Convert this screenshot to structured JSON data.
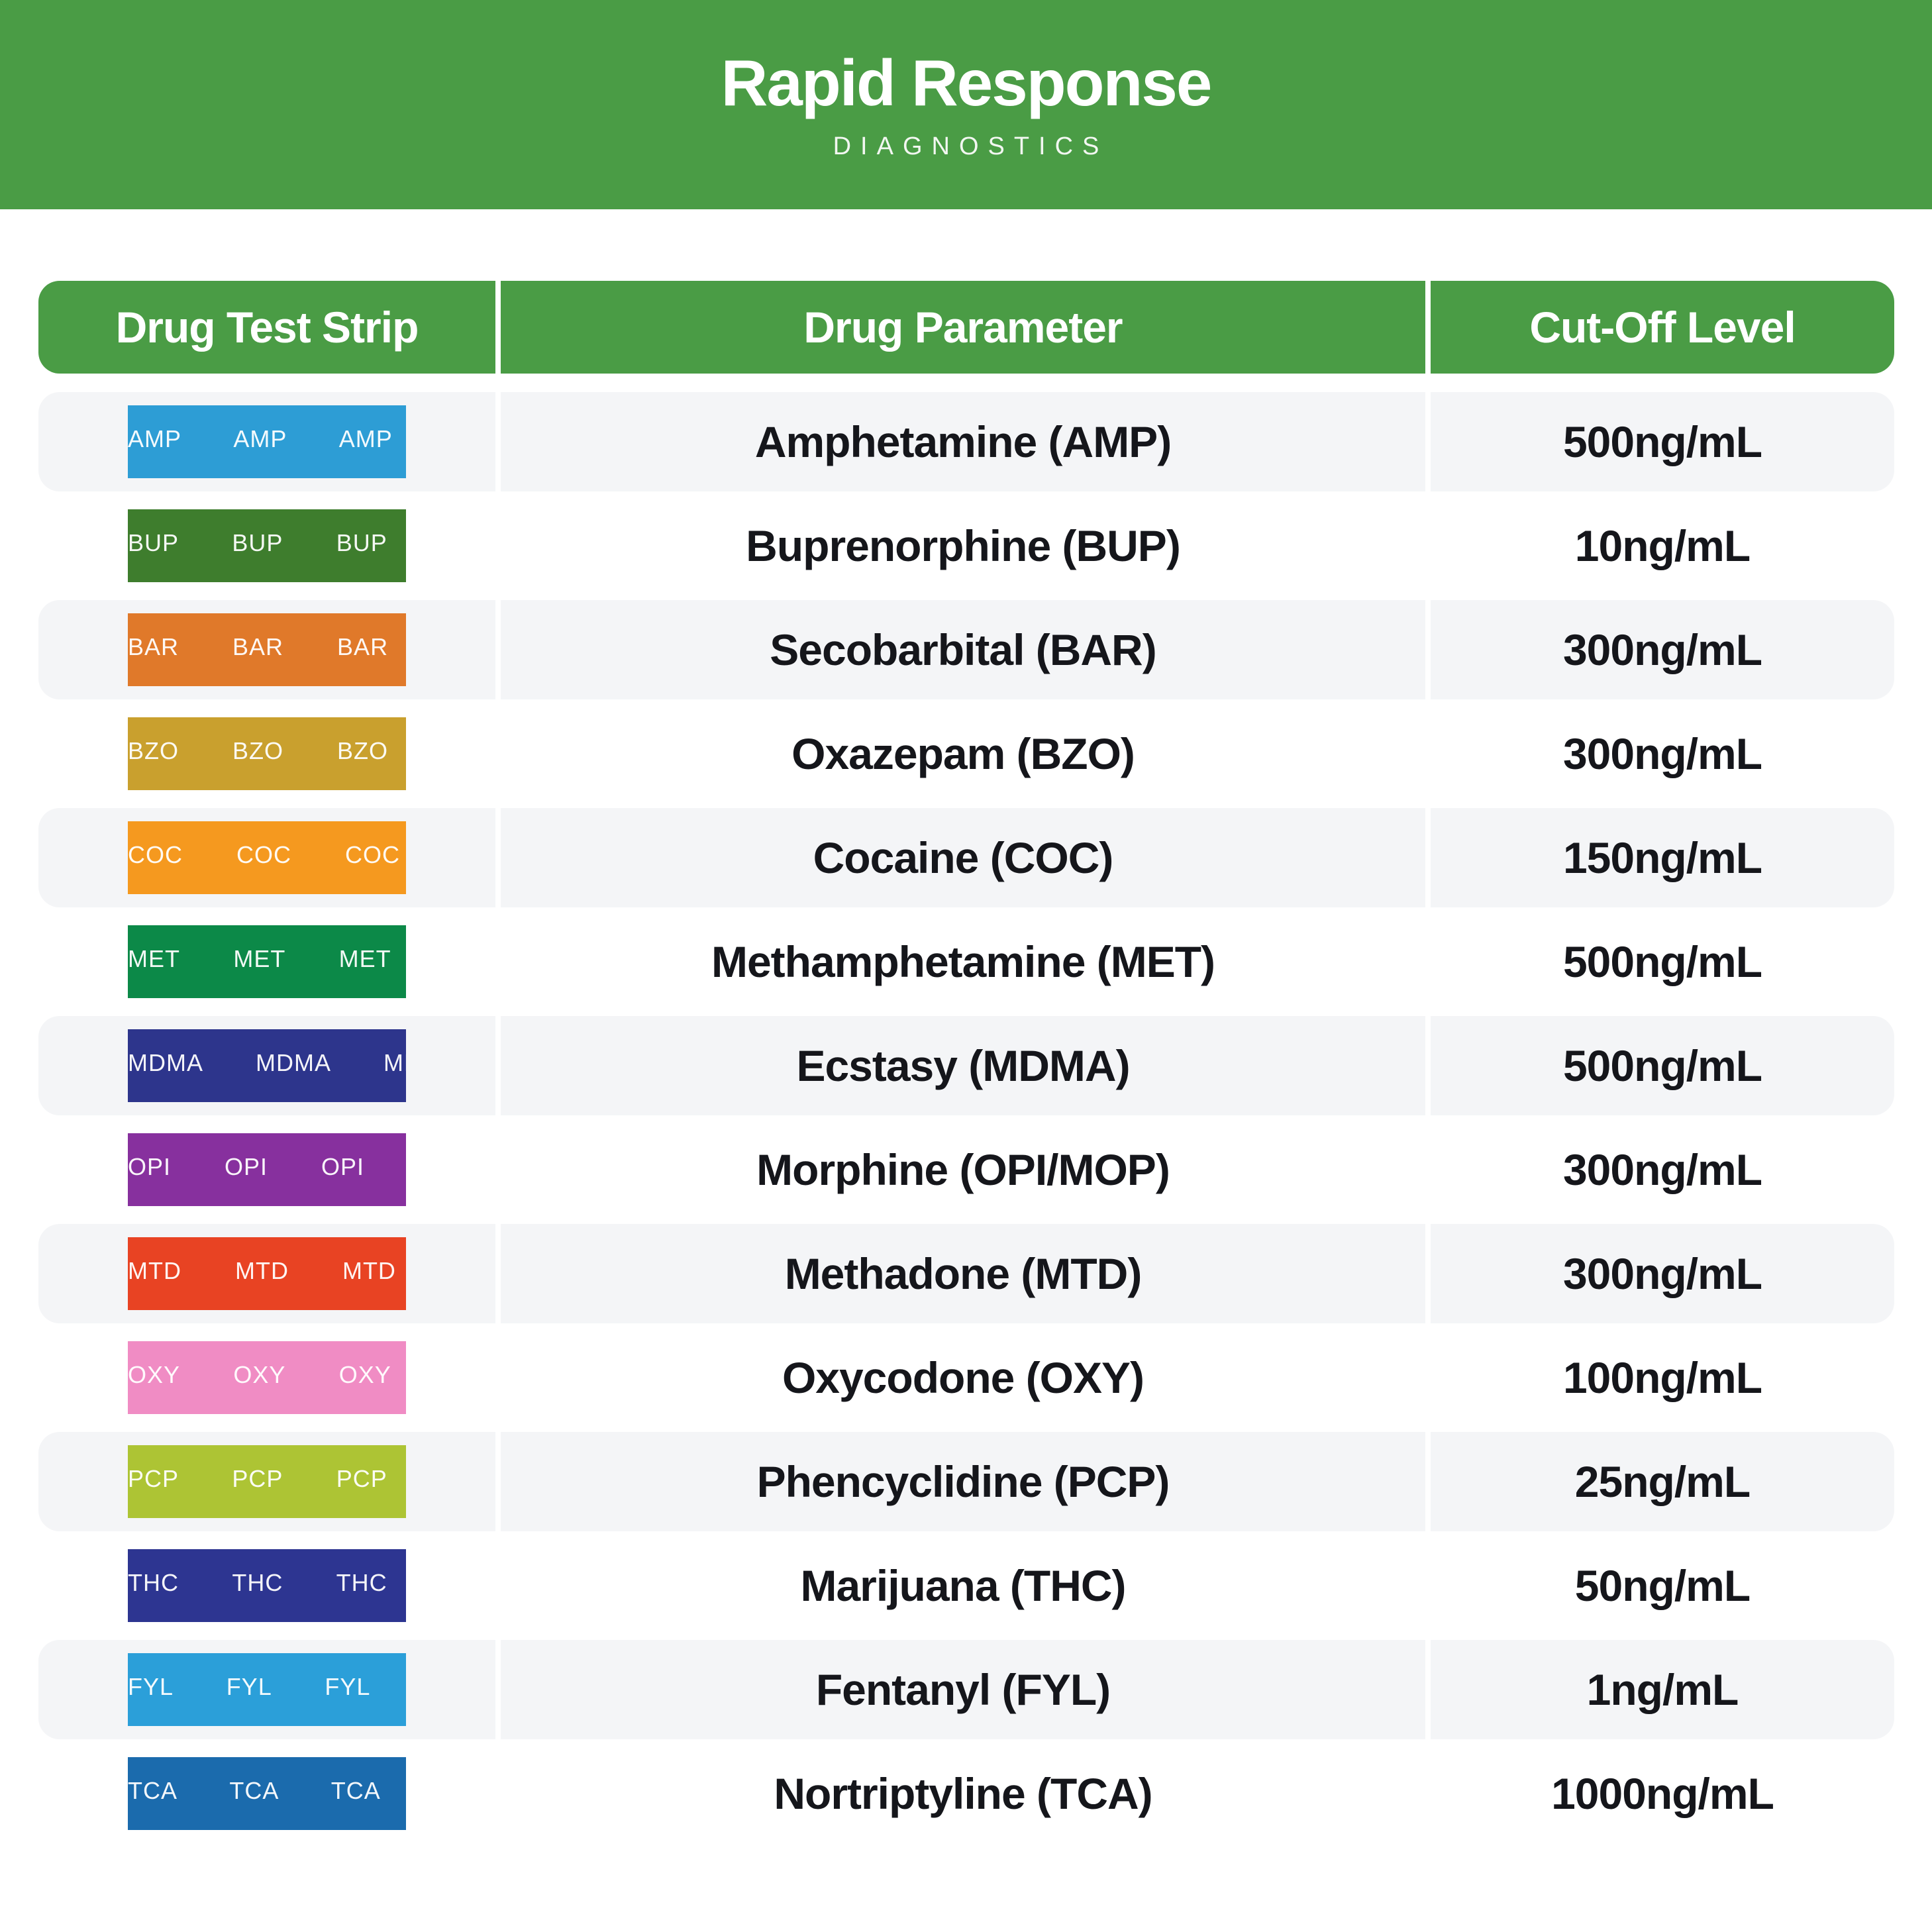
{
  "brand": {
    "title": "Rapid Response",
    "subtitle": "DIAGNOSTICS"
  },
  "colors": {
    "green": "#4a9c45",
    "row_alt_bg": "#f4f5f7",
    "ink": "#15161b",
    "strip_text": "#ffffff"
  },
  "table": {
    "headers": [
      {
        "id": "strip",
        "label": "Drug Test Strip"
      },
      {
        "id": "parameter",
        "label": "Drug Parameter"
      },
      {
        "id": "cutoff",
        "label": "Cut-Off Level"
      }
    ],
    "rows": [
      {
        "code": "AMP",
        "partial": "P",
        "parameter": "Amphetamine (AMP)",
        "cutoff": "500ng/mL",
        "strip_color": "#2d9dd5"
      },
      {
        "code": "BUP",
        "partial": "P",
        "parameter": "Buprenorphine (BUP)",
        "cutoff": "10ng/mL",
        "strip_color": "#3e7d2d"
      },
      {
        "code": "BAR",
        "partial": "R",
        "parameter": "Secobarbital (BAR)",
        "cutoff": "300ng/mL",
        "strip_color": "#e0792a"
      },
      {
        "code": "BZO",
        "partial": "O",
        "parameter": "Oxazepam (BZO)",
        "cutoff": "300ng/mL",
        "strip_color": "#c9a02e"
      },
      {
        "code": "COC",
        "partial": "C",
        "parameter": "Cocaine (COC)",
        "cutoff": "150ng/mL",
        "strip_color": "#f5991f"
      },
      {
        "code": "MET",
        "partial": "T",
        "parameter": "Methamphetamine (MET)",
        "cutoff": "500ng/mL",
        "strip_color": "#0c8948"
      },
      {
        "code": "MDMA",
        "partial": "DMA",
        "parameter": "Ecstasy (MDMA)",
        "cutoff": "500ng/mL",
        "strip_color": "#2d358c"
      },
      {
        "code": "OPI",
        "partial": "PI",
        "parameter": "Morphine (OPI/MOP)",
        "cutoff": "300ng/mL",
        "strip_color": "#87309e"
      },
      {
        "code": "MTD",
        "partial": "D",
        "parameter": "Methadone (MTD)",
        "cutoff": "300ng/mL",
        "strip_color": "#e84323"
      },
      {
        "code": "OXY",
        "partial": "Y",
        "parameter": "Oxycodone (OXY)",
        "cutoff": "100ng/mL",
        "strip_color": "#f08cc4"
      },
      {
        "code": "PCP",
        "partial": "P",
        "parameter": "Phencyclidine (PCP)",
        "cutoff": "25ng/mL",
        "strip_color": "#adc434"
      },
      {
        "code": "THC",
        "partial": "C",
        "parameter": "Marijuana (THC)",
        "cutoff": "50ng/mL",
        "strip_color": "#2d3591"
      },
      {
        "code": "FYL",
        "partial": "YL",
        "parameter": "Fentanyl (FYL)",
        "cutoff": "1ng/mL",
        "strip_color": "#2b9fd9"
      },
      {
        "code": "TCA",
        "partial": "CA",
        "parameter": "Nortriptyline (TCA)",
        "cutoff": "1000ng/mL",
        "strip_color": "#1b6bad"
      }
    ]
  }
}
